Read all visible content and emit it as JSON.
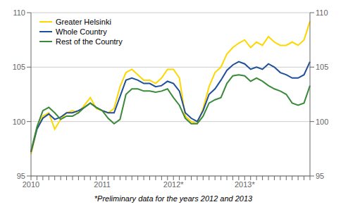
{
  "chart_data": {
    "type": "line",
    "annotations": [
      "*Preliminary data for the years 2012 and 2013"
    ],
    "categories": [
      "2010",
      null,
      null,
      null,
      null,
      null,
      null,
      null,
      null,
      null,
      null,
      null,
      "2011",
      null,
      null,
      null,
      null,
      null,
      null,
      null,
      null,
      null,
      null,
      null,
      "2012*",
      null,
      null,
      null,
      null,
      null,
      null,
      null,
      null,
      null,
      null,
      null,
      "2013*",
      null,
      null,
      null,
      null,
      null,
      null,
      null,
      null,
      null,
      null,
      null
    ],
    "series": [
      {
        "name": "Greater Helsinki",
        "color": "#FFD700",
        "values": [
          97.0,
          99.3,
          100.5,
          100.8,
          99.3,
          100.2,
          100.8,
          101.0,
          100.8,
          101.5,
          102.2,
          101.2,
          101.0,
          100.8,
          101.2,
          103.2,
          104.5,
          104.8,
          104.3,
          103.8,
          103.8,
          103.5,
          104.0,
          104.8,
          104.8,
          104.0,
          100.5,
          100.0,
          99.8,
          101.2,
          103.2,
          104.5,
          105.0,
          106.2,
          106.8,
          107.2,
          107.5,
          106.8,
          107.3,
          107.0,
          107.8,
          107.3,
          107.0,
          107.0,
          107.3,
          107.0,
          107.5,
          109.2
        ]
      },
      {
        "name": "Whole Country",
        "color": "#1F4E9A",
        "values": [
          97.2,
          99.3,
          100.3,
          100.7,
          100.2,
          100.4,
          100.8,
          100.8,
          101.0,
          101.3,
          101.7,
          101.3,
          101.0,
          100.8,
          100.8,
          102.3,
          103.8,
          104.0,
          103.8,
          103.5,
          103.5,
          103.2,
          103.3,
          103.7,
          103.5,
          102.8,
          100.8,
          100.3,
          100.0,
          101.0,
          102.5,
          103.0,
          103.8,
          104.7,
          105.2,
          105.5,
          105.3,
          104.8,
          105.0,
          104.8,
          105.3,
          105.0,
          104.5,
          104.3,
          104.0,
          104.0,
          104.3,
          105.5
        ]
      },
      {
        "name": "Rest of the Country",
        "color": "#3A8A3A",
        "values": [
          97.3,
          99.5,
          101.0,
          101.3,
          100.8,
          100.2,
          100.5,
          100.5,
          100.8,
          101.3,
          101.7,
          101.3,
          101.0,
          100.3,
          99.8,
          100.2,
          102.5,
          103.0,
          103.0,
          102.8,
          102.8,
          102.7,
          102.8,
          103.0,
          102.2,
          101.5,
          100.3,
          99.8,
          99.8,
          100.5,
          101.7,
          102.0,
          102.2,
          103.5,
          104.2,
          104.3,
          104.2,
          103.7,
          104.0,
          103.7,
          103.3,
          103.0,
          102.8,
          102.5,
          101.7,
          101.5,
          101.7,
          103.3
        ]
      }
    ],
    "ylim": [
      95,
      110
    ],
    "yticks": [
      95,
      100,
      105,
      110
    ],
    "y2lim": [
      95,
      110
    ],
    "y2ticks": [
      95,
      100,
      105,
      110
    ],
    "grid": true,
    "legend": "upper left"
  }
}
